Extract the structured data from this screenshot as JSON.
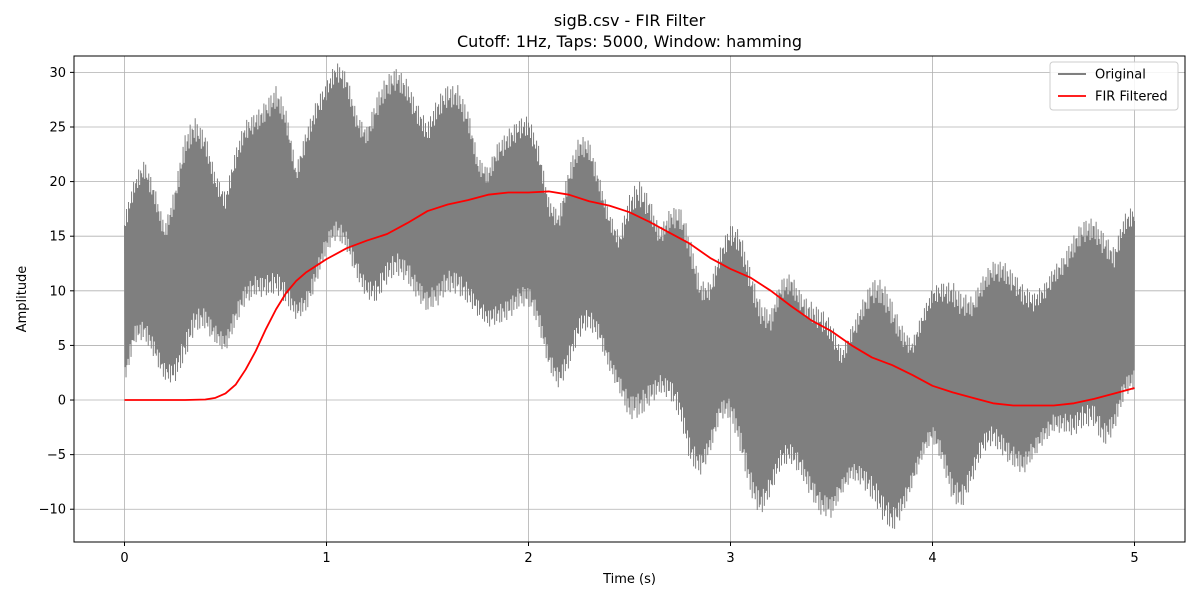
{
  "chart_data": {
    "type": "line",
    "title": "sigB.csv - FIR Filter",
    "subtitle": "Cutoff: 1Hz, Taps: 5000, Window: hamming",
    "xlabel": "Time (s)",
    "ylabel": "Amplitude",
    "xlim": [
      -0.25,
      5.25
    ],
    "ylim": [
      -13,
      31.5
    ],
    "xticks": [
      0,
      1,
      2,
      3,
      4,
      5
    ],
    "yticks": [
      -10,
      -5,
      0,
      5,
      10,
      15,
      20,
      25,
      30
    ],
    "xtick_labels": [
      "0",
      "1",
      "2",
      "3",
      "4",
      "5"
    ],
    "ytick_labels": [
      "−10",
      "−5",
      "0",
      "5",
      "10",
      "15",
      "20",
      "25",
      "30"
    ],
    "grid": true,
    "legend_position": "top-right",
    "series": [
      {
        "name": "Original",
        "color": "#7f7f7f",
        "style": "dense-oscillation-band",
        "envelope": {
          "x": [
            0.0,
            0.05,
            0.1,
            0.15,
            0.2,
            0.25,
            0.3,
            0.35,
            0.4,
            0.45,
            0.5,
            0.55,
            0.6,
            0.65,
            0.7,
            0.75,
            0.8,
            0.85,
            0.9,
            0.95,
            1.0,
            1.05,
            1.1,
            1.15,
            1.2,
            1.25,
            1.3,
            1.35,
            1.4,
            1.45,
            1.5,
            1.55,
            1.6,
            1.65,
            1.7,
            1.75,
            1.8,
            1.85,
            1.9,
            1.95,
            2.0,
            2.05,
            2.1,
            2.15,
            2.2,
            2.25,
            2.3,
            2.35,
            2.4,
            2.45,
            2.5,
            2.55,
            2.6,
            2.65,
            2.7,
            2.75,
            2.8,
            2.85,
            2.9,
            2.95,
            3.0,
            3.05,
            3.1,
            3.15,
            3.2,
            3.25,
            3.3,
            3.35,
            3.4,
            3.45,
            3.5,
            3.55,
            3.6,
            3.65,
            3.7,
            3.75,
            3.8,
            3.85,
            3.9,
            3.95,
            4.0,
            4.05,
            4.1,
            4.15,
            4.2,
            4.25,
            4.3,
            4.35,
            4.4,
            4.45,
            4.5,
            4.55,
            4.6,
            4.65,
            4.7,
            4.75,
            4.8,
            4.85,
            4.9,
            4.95,
            5.0
          ],
          "upper": [
            16.0,
            19.0,
            20.8,
            19.0,
            15.8,
            18.5,
            22.5,
            24.5,
            24.0,
            20.5,
            18.0,
            21.5,
            24.5,
            26.0,
            27.0,
            27.5,
            25.0,
            20.5,
            24.5,
            27.0,
            28.0,
            29.5,
            29.0,
            26.0,
            24.5,
            26.5,
            28.0,
            29.5,
            29.0,
            26.5,
            24.0,
            26.0,
            28.0,
            28.5,
            26.0,
            21.0,
            20.0,
            23.0,
            24.5,
            25.0,
            24.5,
            22.0,
            18.0,
            17.0,
            20.5,
            22.5,
            22.5,
            20.0,
            17.0,
            14.5,
            17.0,
            18.5,
            18.0,
            15.5,
            16.5,
            16.0,
            13.5,
            10.5,
            10.5,
            13.0,
            14.5,
            14.0,
            11.5,
            8.5,
            7.0,
            9.5,
            10.5,
            9.5,
            8.5,
            7.0,
            5.5,
            3.8,
            6.5,
            8.5,
            9.5,
            9.0,
            8.0,
            6.5,
            5.0,
            7.0,
            9.0,
            10.0,
            10.5,
            9.0,
            8.0,
            10.0,
            12.0,
            12.5,
            11.0,
            9.0,
            8.5,
            10.0,
            12.0,
            12.5,
            13.5,
            15.0,
            16.0,
            15.0,
            13.0,
            15.5,
            16.5
          ],
          "lower": [
            2.0,
            5.5,
            6.0,
            5.0,
            3.0,
            2.5,
            4.0,
            7.0,
            8.0,
            6.5,
            5.0,
            7.0,
            9.5,
            11.0,
            11.0,
            10.5,
            9.0,
            8.0,
            9.5,
            12.0,
            14.0,
            15.0,
            14.5,
            12.5,
            10.5,
            9.5,
            11.0,
            12.5,
            12.5,
            10.5,
            8.5,
            9.0,
            11.0,
            11.5,
            10.0,
            8.0,
            7.0,
            8.0,
            9.0,
            9.5,
            9.0,
            7.0,
            4.0,
            2.5,
            4.0,
            6.0,
            7.0,
            6.5,
            4.0,
            1.5,
            -1.5,
            -1.0,
            1.0,
            2.0,
            1.0,
            -1.5,
            -5.0,
            -5.5,
            -3.5,
            -1.0,
            -1.5,
            -4.0,
            -7.0,
            -9.0,
            -8.0,
            -6.0,
            -5.0,
            -5.5,
            -7.5,
            -10.0,
            -10.5,
            -8.0,
            -6.0,
            -6.5,
            -8.5,
            -10.5,
            -11.0,
            -9.0,
            -7.0,
            -5.0,
            -3.5,
            -5.0,
            -7.5,
            -8.5,
            -7.0,
            -4.5,
            -3.0,
            -3.5,
            -5.0,
            -6.5,
            -5.0,
            -3.0,
            -1.5,
            -2.0,
            -3.0,
            -2.0,
            -1.0,
            -2.5,
            -2.0,
            0.5,
            1.5
          ]
        }
      },
      {
        "name": "FIR Filtered",
        "color": "#ff0000",
        "x": [
          0.0,
          0.1,
          0.2,
          0.3,
          0.4,
          0.45,
          0.5,
          0.55,
          0.6,
          0.65,
          0.7,
          0.75,
          0.8,
          0.85,
          0.9,
          0.95,
          1.0,
          1.1,
          1.2,
          1.3,
          1.4,
          1.5,
          1.6,
          1.7,
          1.8,
          1.9,
          2.0,
          2.1,
          2.2,
          2.3,
          2.4,
          2.5,
          2.6,
          2.7,
          2.8,
          2.9,
          3.0,
          3.1,
          3.2,
          3.3,
          3.4,
          3.5,
          3.6,
          3.7,
          3.8,
          3.9,
          4.0,
          4.1,
          4.2,
          4.3,
          4.4,
          4.5,
          4.6,
          4.7,
          4.8,
          4.9,
          5.0
        ],
        "y": [
          0.0,
          0.0,
          0.0,
          0.0,
          0.05,
          0.2,
          0.6,
          1.4,
          2.8,
          4.5,
          6.5,
          8.3,
          9.8,
          10.9,
          11.7,
          12.3,
          12.9,
          13.9,
          14.6,
          15.2,
          16.2,
          17.3,
          17.9,
          18.3,
          18.8,
          19.0,
          19.0,
          19.1,
          18.8,
          18.2,
          17.8,
          17.2,
          16.3,
          15.3,
          14.3,
          13.0,
          12.0,
          11.2,
          10.0,
          8.6,
          7.3,
          6.3,
          5.0,
          3.9,
          3.2,
          2.3,
          1.3,
          0.7,
          0.2,
          -0.3,
          -0.5,
          -0.5,
          -0.5,
          -0.3,
          0.1,
          0.6,
          1.1
        ]
      }
    ]
  }
}
